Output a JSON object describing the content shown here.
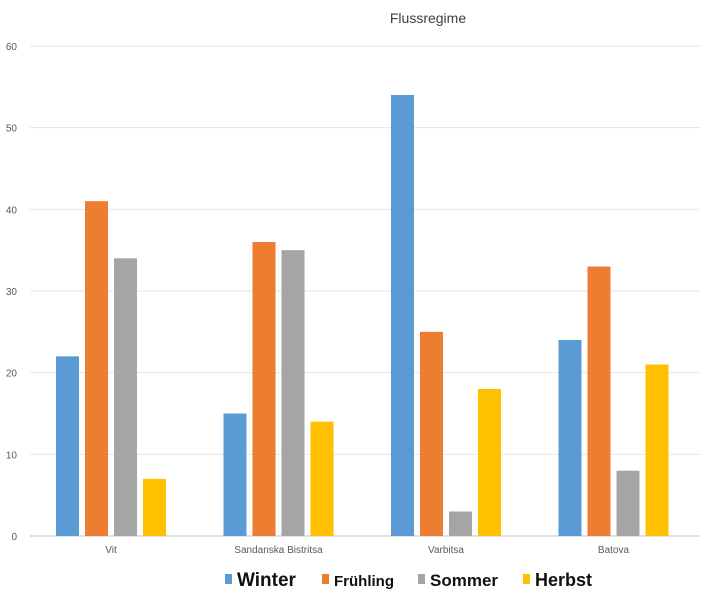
{
  "chart_data": {
    "type": "bar",
    "title": "Flussregime",
    "xlabel": "",
    "ylabel": "",
    "categories": [
      "Vit",
      "Sandanska Bistritsa",
      "Varbitsa",
      "Batova"
    ],
    "series": [
      {
        "name": "Winter",
        "color": "#5B9BD5",
        "values": [
          22,
          15,
          54,
          24
        ]
      },
      {
        "name": "Frühling",
        "color": "#ED7D31",
        "values": [
          41,
          36,
          25,
          33
        ]
      },
      {
        "name": "Sommer",
        "color": "#A5A5A5",
        "values": [
          34,
          35,
          3,
          8
        ]
      },
      {
        "name": "Herbst",
        "color": "#FFC000",
        "values": [
          7,
          14,
          18,
          21
        ]
      }
    ],
    "ylim": [
      0,
      60
    ],
    "yticks": [
      "0",
      "10",
      "20",
      "30",
      "40",
      "50",
      "60"
    ],
    "grid": true,
    "legend_position": "bottom"
  }
}
